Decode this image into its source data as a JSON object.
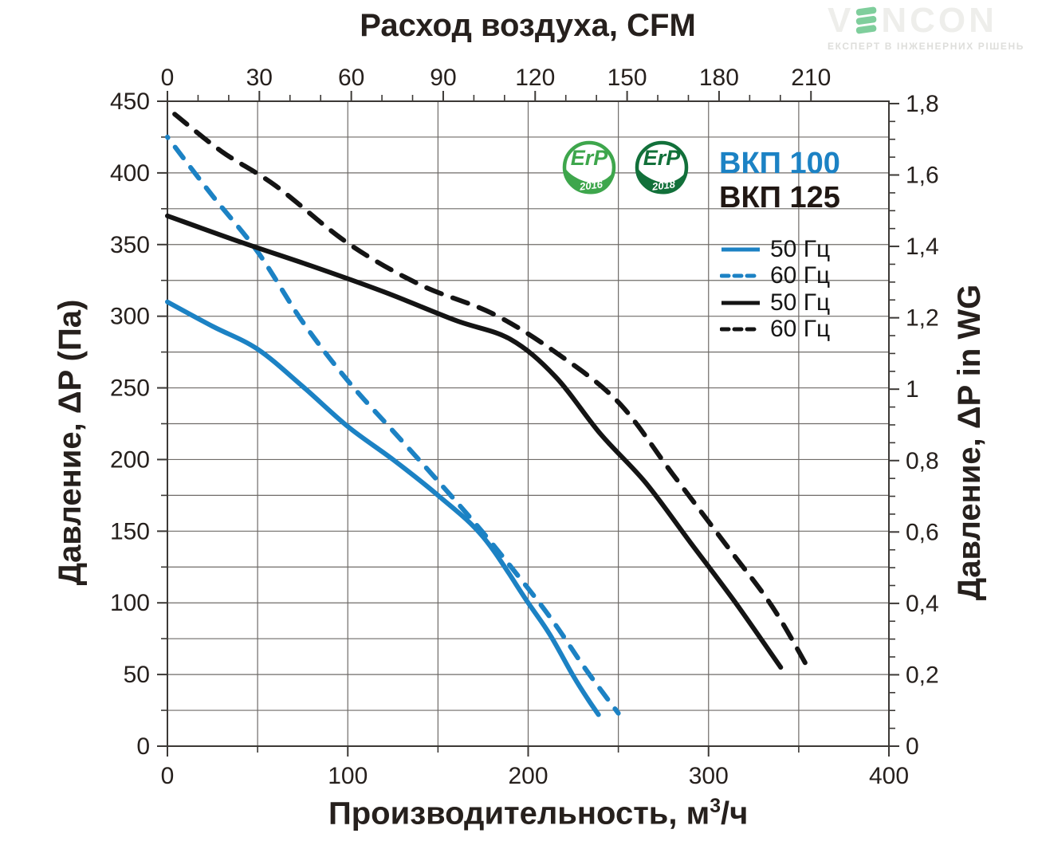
{
  "logo": {
    "brand": "VENCON",
    "brand_pre": "V",
    "brand_rest": "NCON",
    "tagline": "ЕКСПЕРТ В ІНЖЕНЕРНИХ РІШЕНЬ",
    "wave_color": "#7fce9c",
    "text_color": "#eeeeeb"
  },
  "badges": [
    {
      "label": "ErP",
      "year": "2016",
      "color": "#3ea64c"
    },
    {
      "label": "ErP",
      "year": "2018",
      "color": "#12703a"
    }
  ],
  "legend": {
    "models": [
      {
        "label": "ВКП 100",
        "color": "#1c82c4"
      },
      {
        "label": "ВКП 125",
        "color": "#201713"
      }
    ],
    "entries": [
      {
        "label": "50 Гц",
        "color": "#1c82c4",
        "dash": "solid"
      },
      {
        "label": "60 Гц",
        "color": "#1c82c4",
        "dash": "dashed"
      },
      {
        "label": "50 Гц",
        "color": "#141414",
        "dash": "solid"
      },
      {
        "label": "60 Гц",
        "color": "#141414",
        "dash": "dashed"
      }
    ]
  },
  "chart_data": {
    "type": "line",
    "grid": {
      "x_step": 50,
      "y_step": 25,
      "color": "#6f6b68",
      "on": true
    },
    "colors": {
      "axis": "#3c3936",
      "text": "#26201d"
    },
    "axes": {
      "top": {
        "label": "Расход воздуха, CFM",
        "unit": "CFM",
        "majors": [
          0,
          30,
          60,
          90,
          120,
          150,
          180,
          210
        ],
        "minor_step": 10,
        "m3h_per_cfm": 1.699
      },
      "bottom": {
        "label": "Производительность, м³/ч",
        "label_parts": {
          "pre": "Производительность, м",
          "sup": "3",
          "post": "/ч"
        },
        "unit": "м³/ч",
        "majors": [
          0,
          100,
          200,
          300,
          400
        ],
        "minor_step": 50,
        "range": [
          0,
          400
        ]
      },
      "left": {
        "label": "Давление, ΔP (Па)",
        "unit": "Па",
        "majors": [
          0,
          50,
          100,
          150,
          200,
          250,
          300,
          350,
          400,
          450
        ],
        "minor_step": 25,
        "range": [
          0,
          450
        ]
      },
      "right": {
        "label": "Давление, ΔP in WG",
        "unit": "in WG",
        "majors": [
          0,
          0.2,
          0.4,
          0.6,
          0.8,
          1,
          1.2,
          1.4,
          1.6,
          1.8
        ],
        "labels": [
          "0",
          "0,2",
          "0,4",
          "0,6",
          "0,8",
          "1",
          "1,2",
          "1,4",
          "1,6",
          "1,8"
        ],
        "minor_step": 0.05,
        "pa_per_inwg": 249.089
      }
    },
    "series": [
      {
        "name": "ВКП 100 — 50 Гц",
        "model": "ВКП 100",
        "frequency": "50 Гц",
        "color": "#1c82c4",
        "line_style": "solid",
        "points": [
          [
            0,
            310
          ],
          [
            25,
            293
          ],
          [
            50,
            277
          ],
          [
            75,
            251
          ],
          [
            100,
            223
          ],
          [
            125,
            200
          ],
          [
            150,
            175
          ],
          [
            175,
            146
          ],
          [
            200,
            100
          ],
          [
            212,
            78
          ],
          [
            225,
            49
          ],
          [
            233,
            33
          ],
          [
            239,
            22
          ]
        ]
      },
      {
        "name": "ВКП 100 — 60 Гц",
        "model": "ВКП 100",
        "frequency": "60 Гц",
        "color": "#1c82c4",
        "line_style": "dashed",
        "points": [
          [
            0,
            425
          ],
          [
            25,
            384
          ],
          [
            50,
            345
          ],
          [
            75,
            296
          ],
          [
            100,
            255
          ],
          [
            125,
            220
          ],
          [
            150,
            185
          ],
          [
            175,
            149
          ],
          [
            200,
            110
          ],
          [
            215,
            85
          ],
          [
            230,
            57
          ],
          [
            241,
            38
          ],
          [
            250,
            23
          ]
        ]
      },
      {
        "name": "ВКП 125 — 50 Гц",
        "model": "ВКП 125",
        "frequency": "50 Гц",
        "color": "#141414",
        "line_style": "solid",
        "points": [
          [
            0,
            370
          ],
          [
            40,
            352
          ],
          [
            80,
            335
          ],
          [
            120,
            317
          ],
          [
            160,
            297
          ],
          [
            190,
            284
          ],
          [
            215,
            258
          ],
          [
            240,
            218
          ],
          [
            265,
            184
          ],
          [
            290,
            142
          ],
          [
            315,
            100
          ],
          [
            340,
            55
          ]
        ]
      },
      {
        "name": "ВКП 125 — 60 Гц",
        "model": "ВКП 125",
        "frequency": "60 Гц",
        "color": "#141414",
        "line_style": "dashed",
        "points": [
          [
            4,
            441
          ],
          [
            30,
            415
          ],
          [
            60,
            391
          ],
          [
            100,
            351
          ],
          [
            140,
            322
          ],
          [
            180,
            302
          ],
          [
            215,
            275
          ],
          [
            250,
            240
          ],
          [
            280,
            190
          ],
          [
            310,
            140
          ],
          [
            335,
            98
          ],
          [
            355,
            55
          ]
        ]
      }
    ]
  }
}
